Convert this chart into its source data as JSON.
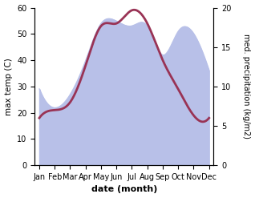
{
  "months": [
    "Jan",
    "Feb",
    "Mar",
    "Apr",
    "May",
    "Jun",
    "Jul",
    "Aug",
    "Sep",
    "Oct",
    "Nov",
    "Dec"
  ],
  "month_indices": [
    0,
    1,
    2,
    3,
    4,
    5,
    6,
    7,
    8,
    9,
    10,
    11
  ],
  "max_temp": [
    18,
    21,
    24,
    38,
    53,
    54,
    59,
    54,
    40,
    29,
    19,
    18
  ],
  "precipitation_kg": [
    9.7,
    7.3,
    9.0,
    13.3,
    18.0,
    18.3,
    17.7,
    17.7,
    14.0,
    17.0,
    16.7,
    12.0
  ],
  "precip_fill_color": "#b8c0e8",
  "left_ylim": [
    0,
    60
  ],
  "right_ylim": [
    0,
    20
  ],
  "left_yticks": [
    0,
    10,
    20,
    30,
    40,
    50,
    60
  ],
  "right_yticks": [
    0,
    5,
    10,
    15,
    20
  ],
  "xlabel": "date (month)",
  "ylabel_left": "max temp (C)",
  "ylabel_right": "med. precipitation (kg/m2)",
  "temp_linewidth": 2.0,
  "temp_line_color": "#993355"
}
